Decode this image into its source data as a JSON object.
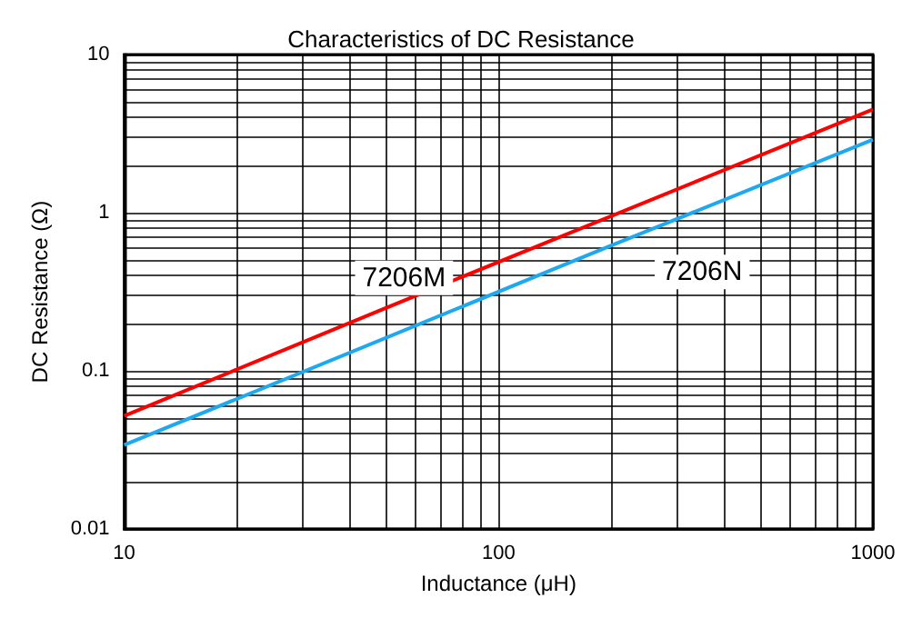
{
  "chart_data": {
    "type": "line",
    "title": "Characteristics of DC Resistance",
    "xlabel": "Inductance (μH)",
    "ylabel": "DC Resistance (Ω)",
    "log": "xy",
    "grid": true,
    "legend": false,
    "marker": "none",
    "line_style": "solid",
    "xlim": [
      10,
      1000
    ],
    "ylim": [
      0.01,
      10
    ],
    "xticks": [
      10,
      {
        "value": 20,
        "label": null
      },
      {
        "value": 30,
        "label": null
      },
      {
        "value": 40,
        "label": null
      },
      {
        "value": 50,
        "label": null
      },
      {
        "value": 60,
        "label": null
      },
      {
        "value": 70,
        "label": null
      },
      {
        "value": 80,
        "label": null
      },
      {
        "value": 90,
        "label": null
      },
      100,
      {
        "value": 200,
        "label": null
      },
      {
        "value": 300,
        "label": null
      },
      {
        "value": 400,
        "label": null
      },
      {
        "value": 500,
        "label": null
      },
      {
        "value": 600,
        "label": null
      },
      {
        "value": 700,
        "label": null
      },
      {
        "value": 800,
        "label": null
      },
      {
        "value": 900,
        "label": null
      },
      1000
    ],
    "yticks": [
      0.01,
      {
        "value": 0.02,
        "label": null
      },
      {
        "value": 0.03,
        "label": null
      },
      {
        "value": 0.04,
        "label": null
      },
      {
        "value": 0.05,
        "label": null
      },
      {
        "value": 0.06,
        "label": null
      },
      {
        "value": 0.07,
        "label": null
      },
      {
        "value": 0.08,
        "label": null
      },
      {
        "value": 0.09,
        "label": null
      },
      0.1,
      {
        "value": 0.2,
        "label": null
      },
      {
        "value": 0.3,
        "label": null
      },
      {
        "value": 0.4,
        "label": null
      },
      {
        "value": 0.5,
        "label": null
      },
      {
        "value": 0.6,
        "label": null
      },
      {
        "value": 0.7,
        "label": null
      },
      {
        "value": 0.8,
        "label": null
      },
      {
        "value": 0.9,
        "label": null
      },
      1,
      {
        "value": 2,
        "label": null
      },
      {
        "value": 3,
        "label": null
      },
      {
        "value": 4,
        "label": null
      },
      {
        "value": 5,
        "label": null
      },
      {
        "value": 6,
        "label": null
      },
      {
        "value": 7,
        "label": null
      },
      {
        "value": 8,
        "label": null
      },
      {
        "value": 9,
        "label": null
      },
      10
    ],
    "series": [
      {
        "name": "7206M",
        "color": "#ff0000",
        "x": [
          10,
          50,
          1000
        ],
        "values": [
          0.052,
          0.25,
          4.5
        ]
      },
      {
        "name": "7206N",
        "color": "#1ea8f0",
        "x": [
          10,
          200,
          1000
        ],
        "values": [
          0.034,
          0.62,
          2.9
        ]
      }
    ]
  }
}
